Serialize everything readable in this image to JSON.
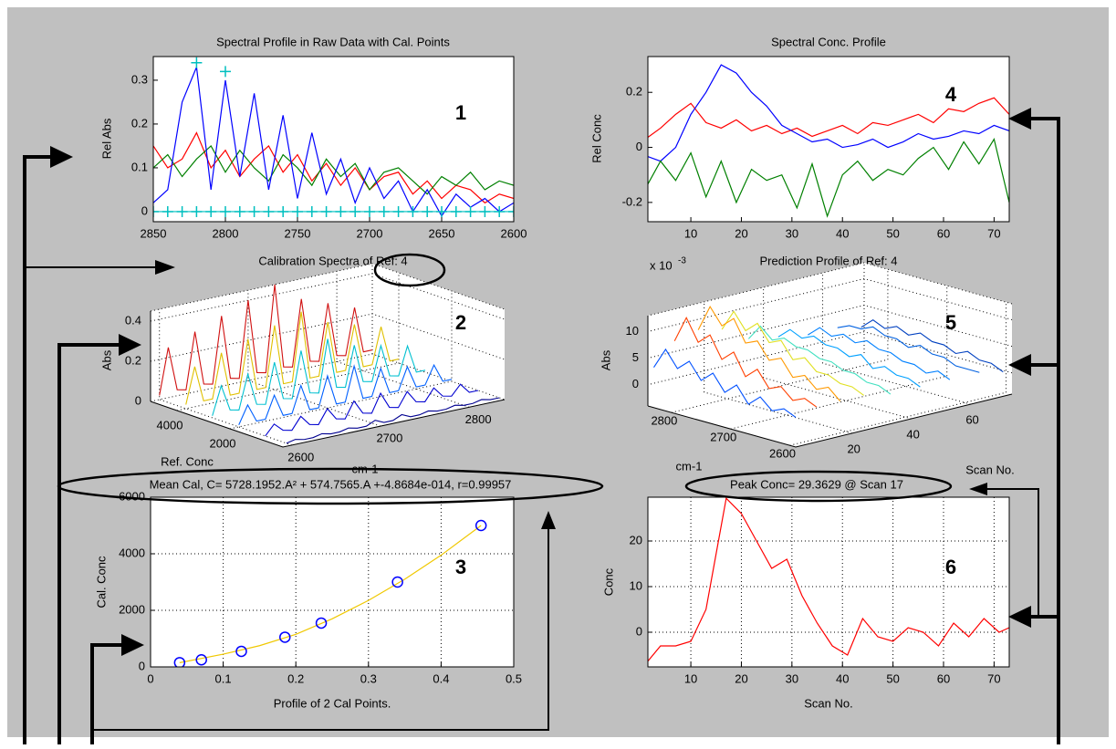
{
  "chart_data": [
    {
      "type": "line",
      "title": "Spectral Profile in Raw Data with Cal. Points",
      "xlabel": "Calibration Spectra of Ref: 4",
      "ylabel": "Rel Abs",
      "annotation": "1",
      "x": [
        2850,
        2840,
        2830,
        2820,
        2810,
        2800,
        2790,
        2780,
        2770,
        2760,
        2750,
        2740,
        2730,
        2720,
        2710,
        2700,
        2690,
        2680,
        2670,
        2660,
        2650,
        2640,
        2630,
        2620,
        2610,
        2600
      ],
      "xlim": [
        2850,
        2600
      ],
      "xticks": [
        2850,
        2800,
        2750,
        2700,
        2650,
        2600
      ],
      "ylim": [
        -0.023,
        0.354
      ],
      "yticks": [
        0,
        0.1,
        0.2,
        0.3
      ],
      "grid": false,
      "series": [
        {
          "color": "#ff0000",
          "values": [
            0.15,
            0.1,
            0.12,
            0.18,
            0.1,
            0.14,
            0.08,
            0.12,
            0.15,
            0.09,
            0.13,
            0.07,
            0.11,
            0.06,
            0.1,
            0.05,
            0.08,
            0.09,
            0.04,
            0.07,
            0.03,
            0.06,
            0.05,
            0.02,
            0.04,
            0.03
          ]
        },
        {
          "color": "#008000",
          "values": [
            0.1,
            0.13,
            0.08,
            0.12,
            0.15,
            0.09,
            0.14,
            0.1,
            0.07,
            0.13,
            0.1,
            0.06,
            0.12,
            0.08,
            0.11,
            0.05,
            0.09,
            0.1,
            0.07,
            0.04,
            0.08,
            0.06,
            0.09,
            0.05,
            0.07,
            0.06
          ]
        },
        {
          "color": "#0000ff",
          "values": [
            0.02,
            0.05,
            0.25,
            0.33,
            0.05,
            0.3,
            0.08,
            0.27,
            0.05,
            0.22,
            0.03,
            0.18,
            0.04,
            0.12,
            0.02,
            0.1,
            0.03,
            0.07,
            0,
            0.05,
            -0.01,
            0.04,
            0.01,
            0.03,
            0,
            0.02
          ]
        },
        {
          "color": "#00bfbf",
          "marker": "+",
          "values": [
            0,
            0,
            0,
            0,
            0,
            0,
            0,
            0,
            0,
            0,
            0,
            0,
            0,
            0,
            0,
            0,
            0,
            0,
            0,
            0,
            0,
            0,
            0,
            0,
            0,
            0
          ]
        },
        {
          "color": "#00bfbf",
          "marker": "+",
          "linestyle": "none",
          "x": [
            2820,
            2800
          ],
          "values": [
            0.34,
            0.32
          ]
        }
      ]
    },
    {
      "type": "surface3d",
      "xlabel": "cm-1",
      "ylabel": "Ref. Conc",
      "zlabel": "Abs",
      "annotation": "2",
      "x": [
        2600,
        2610,
        2620,
        2630,
        2640,
        2650,
        2660,
        2670,
        2680,
        2690,
        2700,
        2710,
        2720,
        2730,
        2740,
        2750,
        2760,
        2770,
        2780,
        2790,
        2800,
        2810,
        2820,
        2830,
        2840
      ],
      "xlim": [
        2590,
        2840
      ],
      "xticks": [
        2600,
        2700,
        2800
      ],
      "ylim": [
        0,
        5000
      ],
      "yticks": [
        2000,
        4000
      ],
      "zlim": [
        0,
        0.45
      ],
      "zticks": [
        0,
        0.2,
        0.4
      ],
      "series": [
        {
          "depth": 200,
          "color": "#000090",
          "values": [
            0,
            0.01,
            0,
            0,
            0.01,
            0,
            0,
            0.01,
            0,
            0,
            0.02,
            0,
            0,
            0.02,
            0,
            0,
            0.01,
            0,
            0,
            0.01,
            0,
            0,
            0.01,
            0,
            0
          ]
        },
        {
          "depth": 1000,
          "color": "#0000d0",
          "values": [
            0,
            0.05,
            0.01,
            0,
            0.06,
            0.01,
            0,
            0.07,
            0.01,
            0,
            0.08,
            0.01,
            0,
            0.09,
            0.01,
            0,
            0.07,
            0.01,
            0,
            0.06,
            0.01,
            0,
            0.05,
            0,
            0
          ]
        },
        {
          "depth": 2000,
          "color": "#0060ff",
          "values": [
            0.01,
            0.1,
            0.01,
            0.01,
            0.12,
            0.01,
            0.01,
            0.14,
            0.01,
            0.01,
            0.16,
            0.01,
            0.01,
            0.18,
            0.01,
            0.01,
            0.14,
            0.01,
            0.01,
            0.12,
            0.01,
            0.01,
            0.1,
            0.01,
            0.01
          ]
        },
        {
          "depth": 3000,
          "color": "#00c0d0",
          "values": [
            0.01,
            0.15,
            0.02,
            0.01,
            0.18,
            0.02,
            0.01,
            0.21,
            0.02,
            0.01,
            0.24,
            0.02,
            0.01,
            0.27,
            0.02,
            0.01,
            0.21,
            0.02,
            0.01,
            0.18,
            0.02,
            0.01,
            0.15,
            0.01,
            0.01
          ]
        },
        {
          "depth": 4000,
          "color": "#e0c000",
          "values": [
            0.02,
            0.2,
            0.02,
            0.02,
            0.24,
            0.02,
            0.02,
            0.28,
            0.02,
            0.02,
            0.32,
            0.02,
            0.02,
            0.36,
            0.02,
            0.02,
            0.28,
            0.02,
            0.02,
            0.24,
            0.02,
            0.02,
            0.2,
            0.02,
            0.02
          ]
        },
        {
          "depth": 5000,
          "color": "#d01010",
          "values": [
            0.02,
            0.25,
            0.03,
            0.02,
            0.3,
            0.03,
            0.02,
            0.35,
            0.03,
            0.02,
            0.4,
            0.03,
            0.02,
            0.45,
            0.03,
            0.02,
            0.35,
            0.03,
            0.02,
            0.3,
            0.03,
            0.02,
            0.25,
            0.02,
            0.02
          ]
        }
      ]
    },
    {
      "type": "line",
      "title": "Mean Cal, C= 5728.1952.A² + 574.7565.A +-4.8684e-014, r=0.99957",
      "xlabel": "Profile of 2 Cal Points.",
      "ylabel": "Cal. Conc",
      "annotation": "3",
      "xlim": [
        0,
        0.5
      ],
      "xticks": [
        0,
        0.1,
        0.2,
        0.3,
        0.4,
        0.5
      ],
      "ylim": [
        0,
        6000
      ],
      "yticks": [
        0,
        2000,
        4000,
        6000
      ],
      "grid": true,
      "series": [
        {
          "color": "#f0c800",
          "x": [
            0.04,
            0.1,
            0.15,
            0.2,
            0.25,
            0.3,
            0.35,
            0.4,
            0.455
          ],
          "values": [
            150,
            450,
            750,
            1150,
            1700,
            2350,
            3100,
            3950,
            5000
          ]
        },
        {
          "color": "#0000ff",
          "marker": "o",
          "linestyle": "none",
          "x": [
            0.04,
            0.07,
            0.125,
            0.185,
            0.235,
            0.34,
            0.455
          ],
          "values": [
            150,
            250,
            550,
            1050,
            1550,
            3000,
            5000
          ]
        }
      ]
    },
    {
      "type": "line",
      "title": "Spectral Conc. Profile",
      "xlabel": "Prediction Profile of Ref: 4",
      "ylabel": "Rel Conc",
      "annotation": "4",
      "x": [
        1,
        4,
        7,
        10,
        13,
        16,
        19,
        22,
        25,
        28,
        31,
        34,
        37,
        40,
        43,
        46,
        49,
        52,
        55,
        58,
        61,
        64,
        67,
        70,
        73
      ],
      "xlim": [
        1.5,
        73
      ],
      "xticks": [
        10,
        20,
        30,
        40,
        50,
        60,
        70
      ],
      "ylim": [
        -0.27,
        0.33
      ],
      "yticks": [
        -0.2,
        0,
        0.2
      ],
      "grid": false,
      "series": [
        {
          "color": "#ff0000",
          "values": [
            0.03,
            0.07,
            0.12,
            0.16,
            0.09,
            0.07,
            0.1,
            0.06,
            0.08,
            0.05,
            0.07,
            0.04,
            0.06,
            0.08,
            0.05,
            0.09,
            0.08,
            0.1,
            0.12,
            0.09,
            0.14,
            0.13,
            0.16,
            0.18,
            0.12
          ]
        },
        {
          "color": "#0000ff",
          "values": [
            -0.03,
            -0.05,
            0,
            0.12,
            0.2,
            0.3,
            0.27,
            0.2,
            0.15,
            0.08,
            0.05,
            0.02,
            0.03,
            0,
            0.01,
            0.03,
            0,
            0.02,
            0.05,
            0.03,
            0.04,
            0.06,
            0.05,
            0.08,
            0.06
          ]
        },
        {
          "color": "#008000",
          "values": [
            -0.15,
            -0.05,
            -0.12,
            -0.02,
            -0.18,
            -0.05,
            -0.2,
            -0.08,
            -0.12,
            -0.1,
            -0.22,
            -0.06,
            -0.25,
            -0.1,
            -0.05,
            -0.12,
            -0.08,
            -0.1,
            -0.04,
            0,
            -0.08,
            0.02,
            -0.06,
            0.03,
            -0.2
          ]
        }
      ]
    },
    {
      "type": "surface3d",
      "xlabel": "cm-1",
      "ylabel": "Scan No.",
      "zlabel": "Abs",
      "annotation": "5",
      "z_multiplier": "x 10",
      "z_exponent": "-3",
      "x": [
        2600,
        2620,
        2640,
        2660,
        2680,
        2700,
        2720,
        2740,
        2760,
        2780,
        2800,
        2820,
        2840
      ],
      "xlim": [
        2590,
        2840
      ],
      "xticks": [
        2600,
        2700,
        2800
      ],
      "ylim": [
        1,
        74
      ],
      "yticks": [
        20,
        40,
        60
      ],
      "zlim": [
        -4,
        13
      ],
      "zticks": [
        0,
        5,
        10
      ],
      "series": [
        {
          "depth": 3,
          "color": "#0050ff",
          "values": [
            1,
            2,
            1,
            3,
            1,
            4,
            2,
            5,
            3,
            6,
            4,
            7,
            3
          ]
        },
        {
          "depth": 10,
          "color": "#ff4000",
          "values": [
            2,
            3,
            2,
            4,
            3,
            6,
            4,
            8,
            6,
            10,
            8,
            12,
            7
          ]
        },
        {
          "depth": 18,
          "color": "#ff9900",
          "values": [
            2,
            4,
            3,
            5,
            4,
            7,
            6,
            9,
            8,
            12,
            10,
            13,
            8
          ]
        },
        {
          "depth": 26,
          "color": "#e0e020",
          "values": [
            2,
            3,
            3,
            4,
            4,
            6,
            5,
            8,
            7,
            10,
            8,
            11,
            7
          ]
        },
        {
          "depth": 35,
          "color": "#40e0c0",
          "values": [
            1,
            2,
            2,
            3,
            3,
            4,
            4,
            5,
            5,
            6,
            5,
            7,
            4
          ]
        },
        {
          "depth": 45,
          "color": "#00a0ff",
          "values": [
            1,
            2,
            2,
            3,
            2,
            4,
            3,
            4,
            4,
            5,
            4,
            5,
            3
          ]
        },
        {
          "depth": 55,
          "color": "#0080ff",
          "values": [
            1,
            2,
            1,
            2,
            2,
            3,
            3,
            4,
            3,
            4,
            3,
            4,
            2
          ]
        },
        {
          "depth": 65,
          "color": "#0060e0",
          "values": [
            1,
            1,
            1,
            2,
            2,
            3,
            2,
            3,
            3,
            4,
            3,
            3,
            2
          ]
        },
        {
          "depth": 73,
          "color": "#0040c0",
          "values": [
            0,
            1,
            1,
            2,
            1,
            2,
            2,
            3,
            2,
            3,
            2,
            3,
            1
          ]
        }
      ]
    },
    {
      "type": "line",
      "title": "Peak Conc= 29.3629 @ Scan 17",
      "xlabel": "Scan No.",
      "ylabel": "Conc",
      "annotation": "6",
      "x": [
        1,
        4,
        7,
        10,
        13,
        17,
        20,
        23,
        26,
        29,
        32,
        35,
        38,
        41,
        44,
        47,
        50,
        53,
        56,
        59,
        62,
        65,
        68,
        71,
        73
      ],
      "xlim": [
        1.5,
        73
      ],
      "xticks": [
        10,
        20,
        30,
        40,
        50,
        60,
        70
      ],
      "ylim": [
        -7.6,
        29.6
      ],
      "yticks": [
        0,
        10,
        20
      ],
      "grid": true,
      "series": [
        {
          "color": "#ff0000",
          "values": [
            -7,
            -3,
            -3,
            -2,
            5,
            29.36,
            26,
            20,
            14,
            16,
            8,
            2,
            -3,
            -5,
            3,
            -1,
            -2,
            1,
            0,
            -3,
            2,
            -1,
            3,
            0,
            1
          ]
        }
      ]
    }
  ]
}
